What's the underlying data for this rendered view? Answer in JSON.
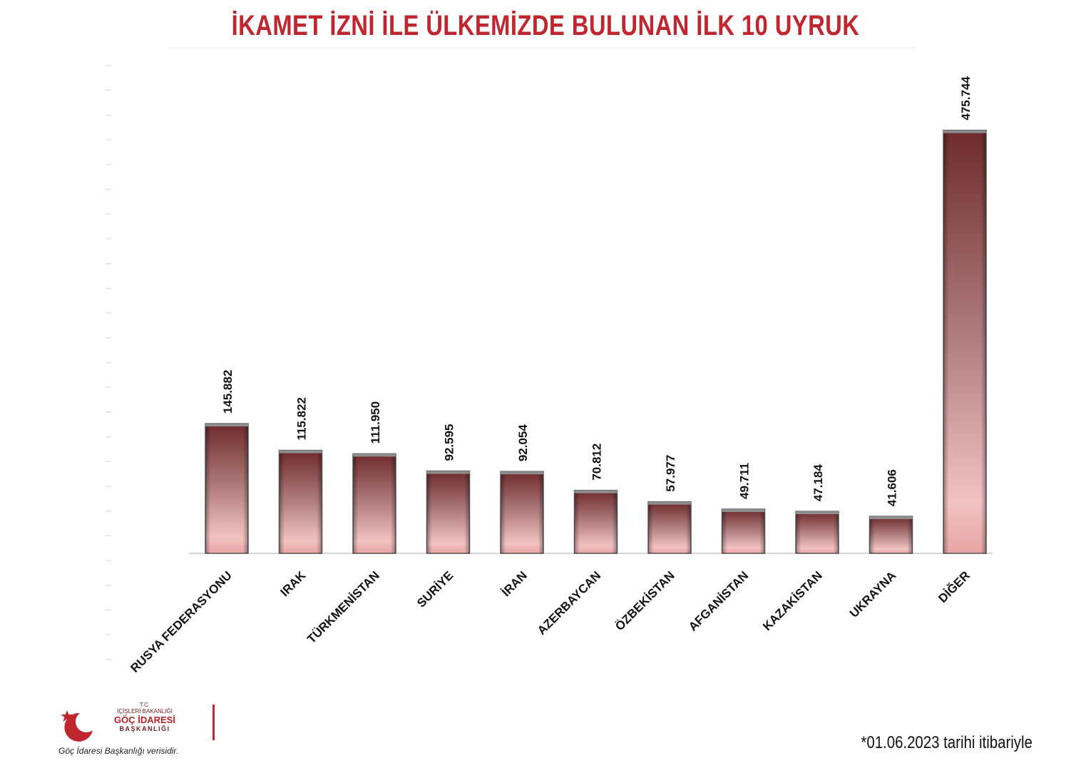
{
  "chart_data": {
    "type": "bar",
    "title": "İKAMET İZNİ İLE ÜLKEMİZDE BULUNAN İLK 10 UYRUK",
    "categories": [
      "RUSYA FEDERASYONU",
      "IRAK",
      "TÜRKMENİSTAN",
      "SURİYE",
      "İRAN",
      "AZERBAYCAN",
      "ÖZBEKİSTAN",
      "AFGANİSTAN",
      "KAZAKİSTAN",
      "UKRAYNA",
      "DİĞER"
    ],
    "values": [
      145882,
      115822,
      111950,
      92595,
      92054,
      70812,
      57977,
      49711,
      47184,
      41606,
      475744
    ],
    "value_labels": [
      "145.882",
      "115.822",
      "111.950",
      "92.595",
      "92.054",
      "70.812",
      "57.977",
      "49.711",
      "47.184",
      "41.606",
      "475.744"
    ],
    "xlabel": "",
    "ylabel": "",
    "ylim": [
      0,
      550000
    ],
    "grid": false,
    "legend": "none",
    "bar_color_top": "#6e2a2c",
    "bar_color_bottom": "#f2c2c2",
    "title_color": "#c0262d"
  },
  "footnote": "*01.06.2023 tarihi itibariyle",
  "logo": {
    "line1": "T.C.",
    "line2": "İÇİŞLERİ BAKANLIĞI",
    "line3": "GÖÇ İDARESİ",
    "line4": "BAŞKANLIĞI",
    "caption": "Göç İdaresi Başkanlığı verisidir.",
    "color": "#c0262d"
  }
}
